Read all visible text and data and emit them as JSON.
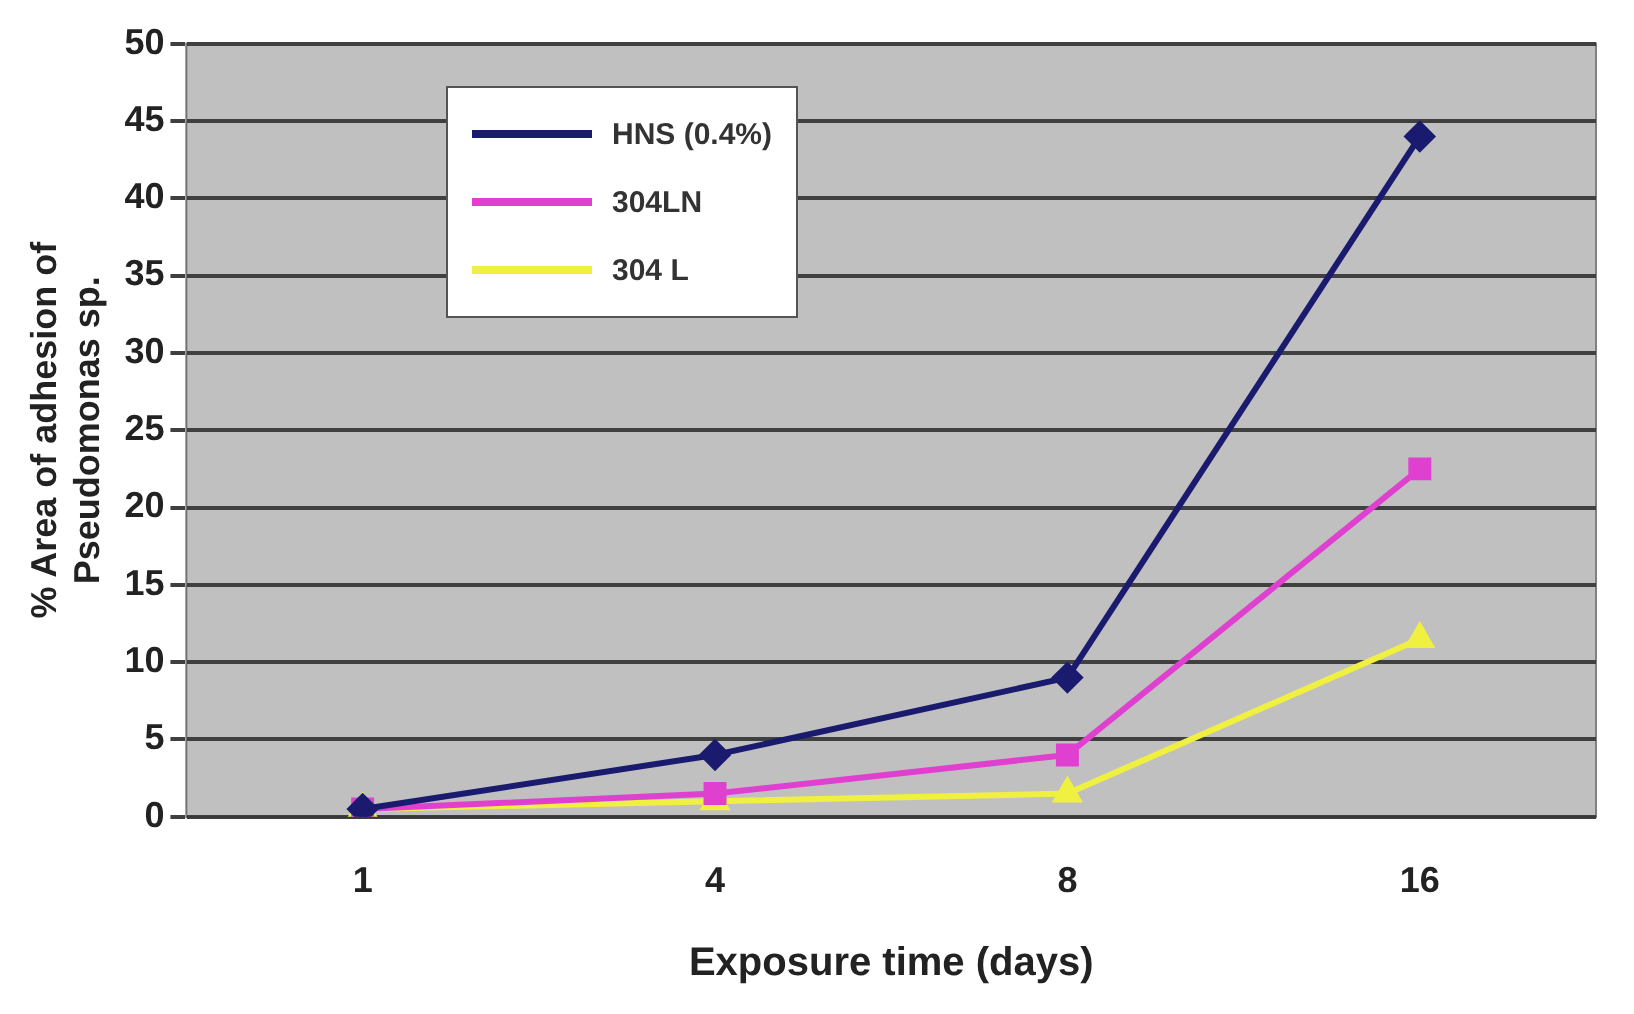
{
  "chart_data": {
    "type": "line",
    "xlabel": "Exposure time (days)",
    "ylabel": "% Area of adhesion of Pseudomonas sp.",
    "categories": [
      "1",
      "4",
      "8",
      "16"
    ],
    "series": [
      {
        "name": "HNS (0.4%)",
        "color": "#1a1a6e",
        "values": [
          0.5,
          4,
          9,
          44
        ],
        "marker": "diamond"
      },
      {
        "name": "304LN",
        "color": "#e040d0",
        "values": [
          0.5,
          1.5,
          4,
          22.5
        ],
        "marker": "square"
      },
      {
        "name": "304 L",
        "color": "#f0f040",
        "values": [
          0.5,
          1,
          1.5,
          11.5
        ],
        "marker": "triangle"
      }
    ],
    "ylim": [
      0,
      50
    ],
    "yticks": [
      0,
      5,
      10,
      15,
      20,
      25,
      30,
      35,
      40,
      45,
      50
    ],
    "grid": "y",
    "legend": "top left"
  }
}
